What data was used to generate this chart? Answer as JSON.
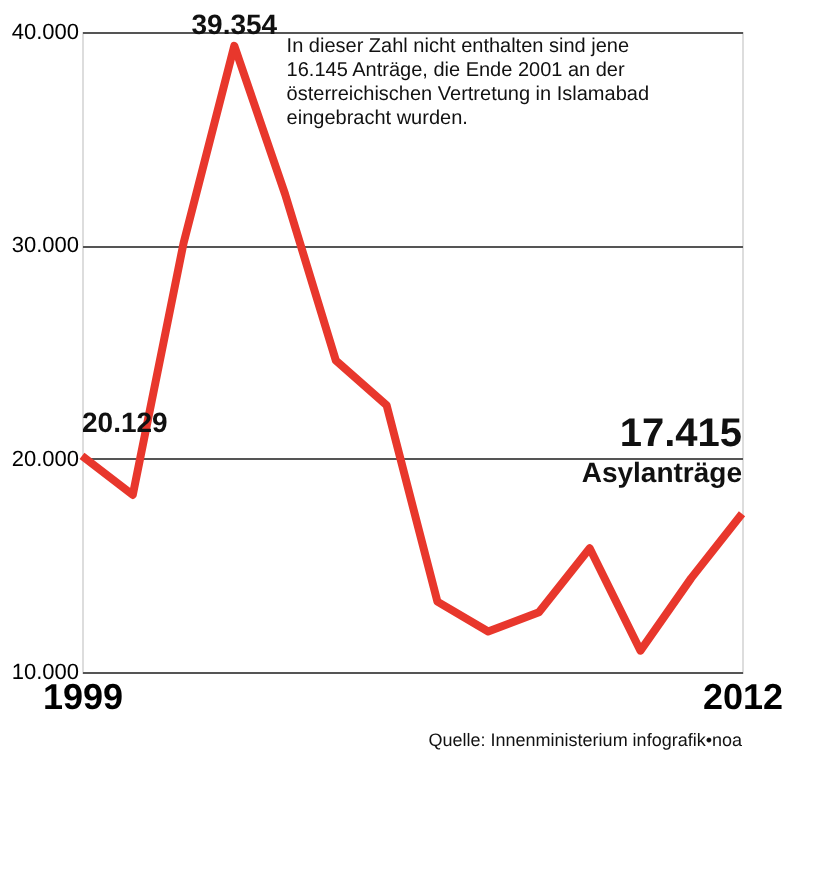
{
  "chart_data": {
    "type": "line",
    "x": [
      1999,
      2000,
      2001,
      2002,
      2003,
      2004,
      2005,
      2006,
      2007,
      2008,
      2009,
      2010,
      2011,
      2012
    ],
    "series": [
      {
        "color": "#e8372c",
        "values": [
          20129,
          18300,
          30100,
          39354,
          32400,
          24600,
          22500,
          13300,
          11900,
          12800,
          15800,
          11000,
          14400,
          17415
        ],
        "value_labels": [
          "20.129",
          null,
          null,
          "39.354",
          null,
          null,
          null,
          null,
          null,
          null,
          null,
          null,
          null,
          "17.415"
        ]
      }
    ],
    "xlim": [
      1999,
      2012
    ],
    "xticks": [
      1999,
      2012
    ],
    "ylim": [
      10000,
      40000
    ],
    "yticks": [
      {
        "value": 10000,
        "label": "10.000"
      },
      {
        "value": 20000,
        "label": "20.000"
      },
      {
        "value": 30000,
        "label": "30.000"
      },
      {
        "value": 40000,
        "label": "40.000"
      }
    ],
    "grid": "y",
    "marker": "none",
    "line_style": "solid",
    "annotations": [
      "In dieser Zahl nicht enthalten sind jene 16.145 Anträge, die Ende 2001 an der österreichischen Vertretung in Islamabad eingebracht wurden.",
      {
        "text": "Asylanträge",
        "x": 2012,
        "y": 17415
      },
      "Quelle: Innenministerium infografik•noa"
    ]
  }
}
